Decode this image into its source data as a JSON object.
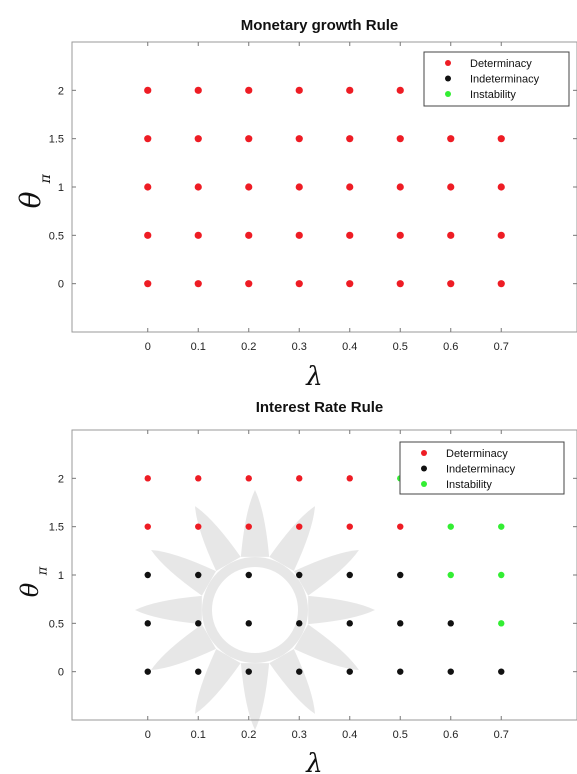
{
  "chart_data": [
    {
      "type": "scatter",
      "title": "Monetary growth Rule",
      "xlabel": "λ",
      "ylabel": "θ",
      "ylabel_sub": "π",
      "xlim": [
        -0.15,
        0.85
      ],
      "ylim": [
        -0.5,
        2.5
      ],
      "xticks": [
        "0",
        "0.1",
        "0.2",
        "0.3",
        "0.4",
        "0.5",
        "0.6",
        "0.7"
      ],
      "yticks": [
        "0",
        "0.5",
        "1",
        "1.5",
        "2"
      ],
      "grid": false,
      "legend_position": "top-right",
      "legend": [
        {
          "label": "Determinacy",
          "color": "#ee1c24"
        },
        {
          "label": "Indeterminacy",
          "color": "#111111"
        },
        {
          "label": "Instability",
          "color": "#33ee33"
        }
      ],
      "points": [
        {
          "x": 0,
          "y": 0,
          "class": "Determinacy"
        },
        {
          "x": 0.1,
          "y": 0,
          "class": "Determinacy"
        },
        {
          "x": 0.2,
          "y": 0,
          "class": "Determinacy"
        },
        {
          "x": 0.3,
          "y": 0,
          "class": "Determinacy"
        },
        {
          "x": 0.4,
          "y": 0,
          "class": "Determinacy"
        },
        {
          "x": 0.5,
          "y": 0,
          "class": "Determinacy"
        },
        {
          "x": 0.6,
          "y": 0,
          "class": "Determinacy"
        },
        {
          "x": 0.7,
          "y": 0,
          "class": "Determinacy"
        },
        {
          "x": 0,
          "y": 0.5,
          "class": "Determinacy"
        },
        {
          "x": 0.1,
          "y": 0.5,
          "class": "Determinacy"
        },
        {
          "x": 0.2,
          "y": 0.5,
          "class": "Determinacy"
        },
        {
          "x": 0.3,
          "y": 0.5,
          "class": "Determinacy"
        },
        {
          "x": 0.4,
          "y": 0.5,
          "class": "Determinacy"
        },
        {
          "x": 0.5,
          "y": 0.5,
          "class": "Determinacy"
        },
        {
          "x": 0.6,
          "y": 0.5,
          "class": "Determinacy"
        },
        {
          "x": 0.7,
          "y": 0.5,
          "class": "Determinacy"
        },
        {
          "x": 0,
          "y": 1,
          "class": "Determinacy"
        },
        {
          "x": 0.1,
          "y": 1,
          "class": "Determinacy"
        },
        {
          "x": 0.2,
          "y": 1,
          "class": "Determinacy"
        },
        {
          "x": 0.3,
          "y": 1,
          "class": "Determinacy"
        },
        {
          "x": 0.4,
          "y": 1,
          "class": "Determinacy"
        },
        {
          "x": 0.5,
          "y": 1,
          "class": "Determinacy"
        },
        {
          "x": 0.6,
          "y": 1,
          "class": "Determinacy"
        },
        {
          "x": 0.7,
          "y": 1,
          "class": "Determinacy"
        },
        {
          "x": 0,
          "y": 1.5,
          "class": "Determinacy"
        },
        {
          "x": 0.1,
          "y": 1.5,
          "class": "Determinacy"
        },
        {
          "x": 0.2,
          "y": 1.5,
          "class": "Determinacy"
        },
        {
          "x": 0.3,
          "y": 1.5,
          "class": "Determinacy"
        },
        {
          "x": 0.4,
          "y": 1.5,
          "class": "Determinacy"
        },
        {
          "x": 0.5,
          "y": 1.5,
          "class": "Determinacy"
        },
        {
          "x": 0.6,
          "y": 1.5,
          "class": "Determinacy"
        },
        {
          "x": 0.7,
          "y": 1.5,
          "class": "Determinacy"
        },
        {
          "x": 0,
          "y": 2,
          "class": "Determinacy"
        },
        {
          "x": 0.1,
          "y": 2,
          "class": "Determinacy"
        },
        {
          "x": 0.2,
          "y": 2,
          "class": "Determinacy"
        },
        {
          "x": 0.3,
          "y": 2,
          "class": "Determinacy"
        },
        {
          "x": 0.4,
          "y": 2,
          "class": "Determinacy"
        },
        {
          "x": 0.5,
          "y": 2,
          "class": "Determinacy"
        }
      ]
    },
    {
      "type": "scatter",
      "title": "Interest Rate Rule",
      "xlabel": "λ",
      "ylabel": "θ",
      "ylabel_sub": "π",
      "xlim": [
        -0.15,
        0.85
      ],
      "ylim": [
        -0.5,
        2.5
      ],
      "xticks": [
        "0",
        "0.1",
        "0.2",
        "0.3",
        "0.4",
        "0.5",
        "0.6",
        "0.7"
      ],
      "yticks": [
        "0",
        "0.5",
        "1",
        "1.5",
        "2"
      ],
      "grid": false,
      "legend_position": "top-right",
      "legend": [
        {
          "label": "Determinacy",
          "color": "#ee1c24"
        },
        {
          "label": "Indeterminacy",
          "color": "#111111"
        },
        {
          "label": "Instability",
          "color": "#33ee33"
        }
      ],
      "points": [
        {
          "x": 0,
          "y": 0,
          "class": "Indeterminacy"
        },
        {
          "x": 0.1,
          "y": 0,
          "class": "Indeterminacy"
        },
        {
          "x": 0.2,
          "y": 0,
          "class": "Indeterminacy"
        },
        {
          "x": 0.3,
          "y": 0,
          "class": "Indeterminacy"
        },
        {
          "x": 0.4,
          "y": 0,
          "class": "Indeterminacy"
        },
        {
          "x": 0.5,
          "y": 0,
          "class": "Indeterminacy"
        },
        {
          "x": 0.6,
          "y": 0,
          "class": "Indeterminacy"
        },
        {
          "x": 0.7,
          "y": 0,
          "class": "Indeterminacy"
        },
        {
          "x": 0,
          "y": 0.5,
          "class": "Indeterminacy"
        },
        {
          "x": 0.1,
          "y": 0.5,
          "class": "Indeterminacy"
        },
        {
          "x": 0.2,
          "y": 0.5,
          "class": "Indeterminacy"
        },
        {
          "x": 0.3,
          "y": 0.5,
          "class": "Indeterminacy"
        },
        {
          "x": 0.4,
          "y": 0.5,
          "class": "Indeterminacy"
        },
        {
          "x": 0.5,
          "y": 0.5,
          "class": "Indeterminacy"
        },
        {
          "x": 0.6,
          "y": 0.5,
          "class": "Indeterminacy"
        },
        {
          "x": 0.7,
          "y": 0.5,
          "class": "Instability"
        },
        {
          "x": 0,
          "y": 1,
          "class": "Indeterminacy"
        },
        {
          "x": 0.1,
          "y": 1,
          "class": "Indeterminacy"
        },
        {
          "x": 0.2,
          "y": 1,
          "class": "Indeterminacy"
        },
        {
          "x": 0.3,
          "y": 1,
          "class": "Indeterminacy"
        },
        {
          "x": 0.4,
          "y": 1,
          "class": "Indeterminacy"
        },
        {
          "x": 0.5,
          "y": 1,
          "class": "Indeterminacy"
        },
        {
          "x": 0.6,
          "y": 1,
          "class": "Instability"
        },
        {
          "x": 0.7,
          "y": 1,
          "class": "Instability"
        },
        {
          "x": 0,
          "y": 1.5,
          "class": "Determinacy"
        },
        {
          "x": 0.1,
          "y": 1.5,
          "class": "Determinacy"
        },
        {
          "x": 0.2,
          "y": 1.5,
          "class": "Determinacy"
        },
        {
          "x": 0.3,
          "y": 1.5,
          "class": "Determinacy"
        },
        {
          "x": 0.4,
          "y": 1.5,
          "class": "Determinacy"
        },
        {
          "x": 0.5,
          "y": 1.5,
          "class": "Determinacy"
        },
        {
          "x": 0.6,
          "y": 1.5,
          "class": "Instability"
        },
        {
          "x": 0.7,
          "y": 1.5,
          "class": "Instability"
        },
        {
          "x": 0,
          "y": 2,
          "class": "Determinacy"
        },
        {
          "x": 0.1,
          "y": 2,
          "class": "Determinacy"
        },
        {
          "x": 0.2,
          "y": 2,
          "class": "Determinacy"
        },
        {
          "x": 0.3,
          "y": 2,
          "class": "Determinacy"
        },
        {
          "x": 0.4,
          "y": 2,
          "class": "Determinacy"
        },
        {
          "x": 0.5,
          "y": 2,
          "class": "Instability"
        }
      ]
    }
  ]
}
